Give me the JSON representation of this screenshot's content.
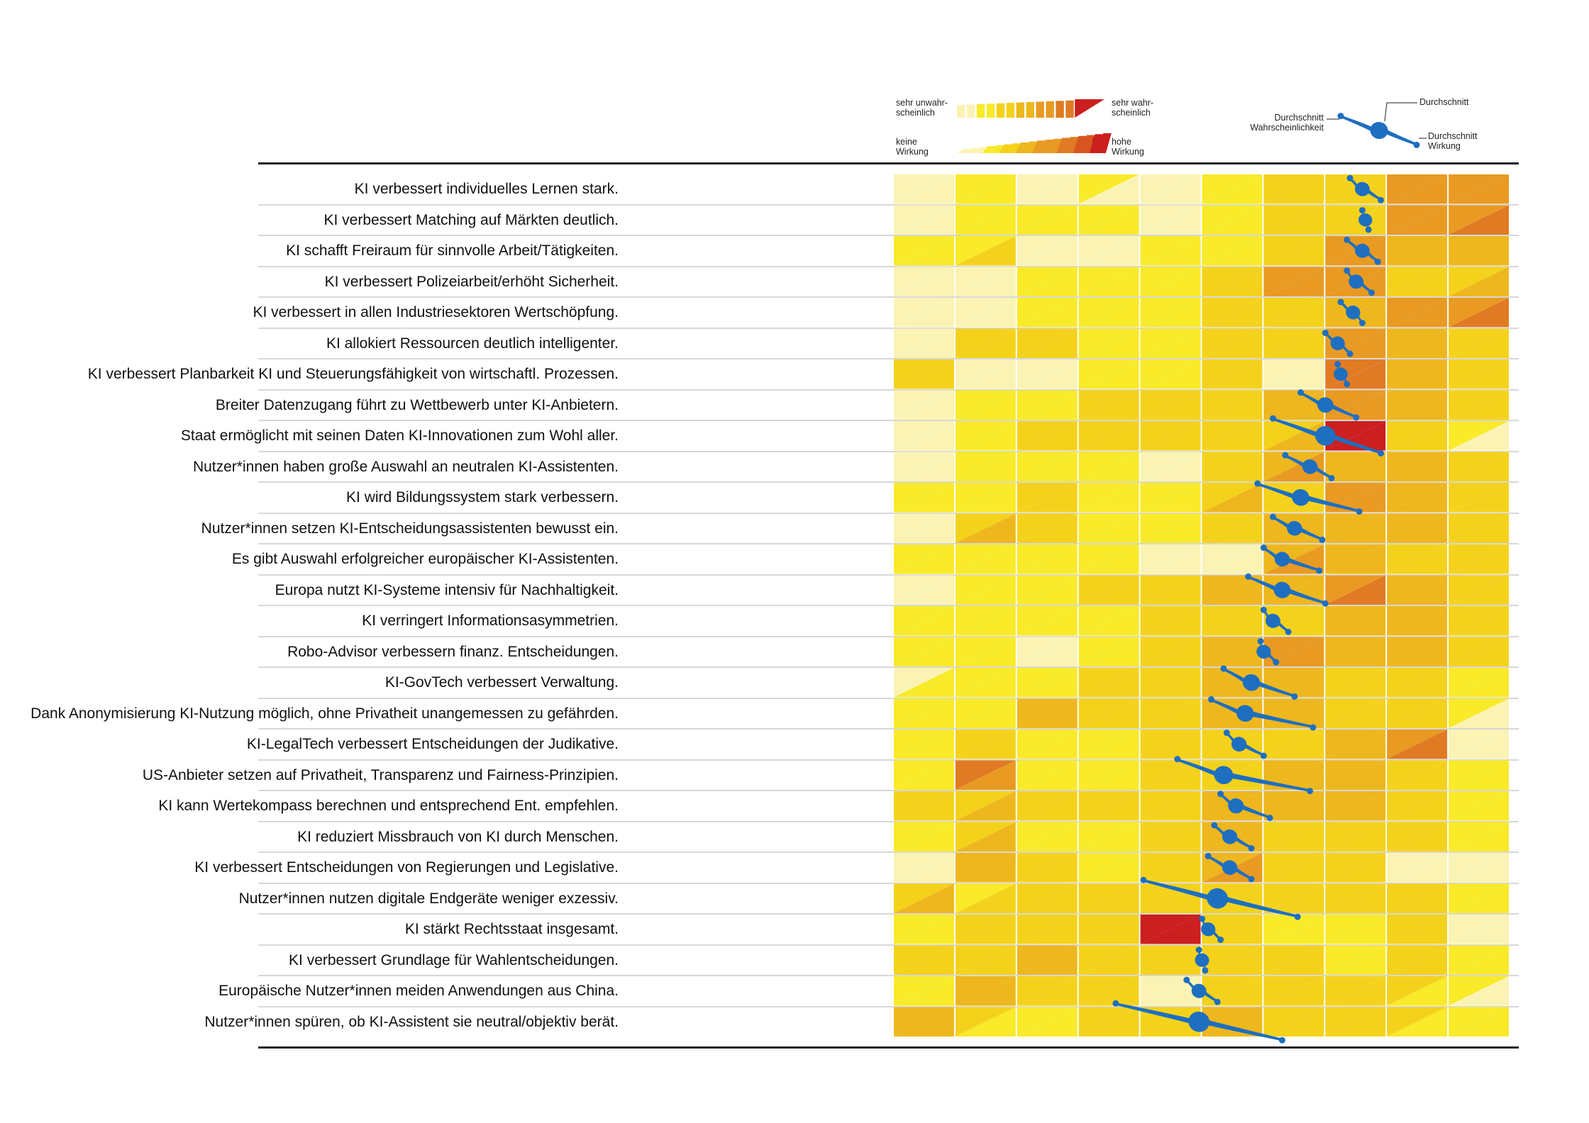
{
  "legend": {
    "prob_low": "sehr unwahr-\nscheinlich",
    "prob_high": "sehr wahr-\nscheinlich",
    "impact_low": "keine\nWirkung",
    "impact_high": "hohe\nWirkung",
    "avg_top": "Durchschnitt",
    "avg_prob": "Durchschnitt\nWahrscheinlichkeit",
    "avg_impact": "Durchschnitt\nWirkung"
  },
  "colors": {
    "scale": [
      "#fbf3b4",
      "#f9ea2a",
      "#f4d21c",
      "#eeb71e",
      "#e99a22",
      "#e07b24",
      "#d9551f",
      "#cc1f1f"
    ],
    "marker": "#1e6fc0"
  },
  "chart_data": {
    "type": "heatmap",
    "columns": 10,
    "rows": [
      {
        "label": "KI verbessert individuelles Lernen stark.",
        "p": [
          0,
          1,
          0,
          1,
          0,
          1,
          2,
          2,
          4,
          4
        ],
        "w": [
          0,
          1,
          0,
          0,
          0,
          1,
          2,
          2,
          4,
          4
        ],
        "mark": [
          7.6,
          7.4,
          7.9,
          0.25
        ]
      },
      {
        "label": "KI verbessert Matching auf Märkten deutlich.",
        "p": [
          0,
          1,
          1,
          1,
          0,
          1,
          2,
          2,
          4,
          4
        ],
        "w": [
          0,
          1,
          1,
          1,
          0,
          1,
          2,
          2,
          4,
          5
        ],
        "mark": [
          7.65,
          7.6,
          7.7,
          0.12
        ]
      },
      {
        "label": "KI schafft Freiraum für sinnvolle Arbeit/Tätigkeiten.",
        "p": [
          1,
          1,
          0,
          0,
          1,
          1,
          2,
          4,
          3,
          3
        ],
        "w": [
          1,
          2,
          0,
          0,
          1,
          1,
          2,
          4,
          3,
          3
        ],
        "mark": [
          7.6,
          7.35,
          7.85,
          0.25
        ]
      },
      {
        "label": "KI verbessert Polizeiarbeit/erhöht Sicherheit.",
        "p": [
          0,
          0,
          1,
          1,
          1,
          2,
          4,
          4,
          2,
          2
        ],
        "w": [
          0,
          0,
          1,
          1,
          1,
          2,
          4,
          4,
          2,
          3
        ],
        "mark": [
          7.5,
          7.35,
          7.75,
          0.25
        ]
      },
      {
        "label": "KI verbessert in allen Industriesektoren Wertschöpfung.",
        "p": [
          0,
          0,
          1,
          1,
          1,
          2,
          2,
          3,
          4,
          4
        ],
        "w": [
          0,
          0,
          1,
          1,
          1,
          2,
          2,
          3,
          4,
          5
        ],
        "mark": [
          7.45,
          7.25,
          7.6,
          0.2
        ]
      },
      {
        "label": "KI allokiert Ressourcen deutlich intelligenter.",
        "p": [
          0,
          2,
          2,
          1,
          1,
          2,
          2,
          4,
          3,
          2
        ],
        "w": [
          0,
          2,
          2,
          1,
          1,
          2,
          2,
          4,
          3,
          2
        ],
        "mark": [
          7.2,
          7.0,
          7.4,
          0.2
        ]
      },
      {
        "label": "KI verbessert Planbarkeit KI und Steuerungsfähigkeit von wirtschaftl. Prozessen.",
        "p": [
          2,
          0,
          0,
          1,
          1,
          2,
          0,
          5,
          3,
          2
        ],
        "w": [
          2,
          0,
          0,
          1,
          1,
          2,
          0,
          5,
          3,
          2
        ],
        "mark": [
          7.25,
          7.2,
          7.35,
          0.15
        ]
      },
      {
        "label": "Breiter Datenzugang führt zu Wettbewerb unter KI-Anbietern.",
        "p": [
          0,
          1,
          1,
          2,
          2,
          2,
          3,
          4,
          3,
          2
        ],
        "w": [
          0,
          1,
          1,
          2,
          2,
          2,
          3,
          4,
          3,
          2
        ],
        "mark": [
          7.0,
          6.6,
          7.5,
          0.4
        ]
      },
      {
        "label": "Staat ermöglicht mit seinen Daten KI-Innovationen zum Wohl aller.",
        "p": [
          0,
          1,
          2,
          2,
          2,
          2,
          2,
          7,
          2,
          1
        ],
        "w": [
          0,
          1,
          2,
          2,
          2,
          2,
          3,
          7,
          2,
          0
        ],
        "mark": [
          7.0,
          6.15,
          7.9,
          0.9
        ]
      },
      {
        "label": "Nutzer*innen haben große Auswahl an neutralen KI-Assistenten.",
        "p": [
          0,
          1,
          1,
          1,
          0,
          2,
          3,
          3,
          3,
          2
        ],
        "w": [
          0,
          1,
          1,
          1,
          0,
          2,
          4,
          3,
          3,
          2
        ],
        "mark": [
          6.75,
          6.35,
          7.1,
          0.3
        ]
      },
      {
        "label": "KI wird Bildungssystem stark verbessern.",
        "p": [
          1,
          1,
          2,
          1,
          1,
          2,
          2,
          4,
          3,
          2
        ],
        "w": [
          1,
          1,
          2,
          1,
          1,
          3,
          2,
          4,
          3,
          2
        ],
        "mark": [
          6.6,
          5.9,
          7.55,
          0.55
        ]
      },
      {
        "label": "Nutzer*innen setzen KI-Entscheidungsassistenten bewusst ein.",
        "p": [
          0,
          2,
          2,
          1,
          1,
          2,
          3,
          3,
          3,
          2
        ],
        "w": [
          0,
          3,
          2,
          1,
          1,
          2,
          3,
          3,
          3,
          2
        ],
        "mark": [
          6.5,
          6.15,
          6.95,
          0.3
        ]
      },
      {
        "label": "Es gibt Auswahl erfolgreicher europäischer KI-Assistenten.",
        "p": [
          1,
          1,
          1,
          1,
          0,
          0,
          3,
          3,
          2,
          2
        ],
        "w": [
          1,
          1,
          1,
          1,
          0,
          0,
          4,
          3,
          2,
          2
        ],
        "mark": [
          6.3,
          6.0,
          6.9,
          0.3
        ]
      },
      {
        "label": "Europa nutzt KI-Systeme intensiv für Nachhaltigkeit.",
        "p": [
          0,
          1,
          1,
          2,
          2,
          3,
          3,
          4,
          3,
          2
        ],
        "w": [
          0,
          1,
          1,
          2,
          2,
          3,
          3,
          5,
          3,
          2
        ],
        "mark": [
          6.3,
          5.75,
          7.0,
          0.5
        ]
      },
      {
        "label": "KI verringert Informationsasymmetrien.",
        "p": [
          1,
          1,
          1,
          1,
          2,
          2,
          2,
          3,
          3,
          2
        ],
        "w": [
          1,
          1,
          1,
          1,
          2,
          2,
          2,
          3,
          3,
          2
        ],
        "mark": [
          6.15,
          6.0,
          6.4,
          0.25
        ]
      },
      {
        "label": "Robo-Advisor verbessern finanz. Entscheidungen.",
        "p": [
          1,
          1,
          0,
          1,
          2,
          3,
          4,
          3,
          3,
          2
        ],
        "w": [
          1,
          1,
          0,
          1,
          2,
          3,
          4,
          3,
          3,
          2
        ],
        "mark": [
          6.0,
          5.95,
          6.2,
          0.2
        ]
      },
      {
        "label": "KI-GovTech verbessert Verwaltung.",
        "p": [
          0,
          1,
          1,
          2,
          2,
          3,
          3,
          2,
          2,
          1
        ],
        "w": [
          1,
          1,
          1,
          2,
          2,
          3,
          3,
          2,
          2,
          1
        ],
        "mark": [
          5.8,
          5.35,
          6.5,
          0.55
        ]
      },
      {
        "label": "Dank Anonymisierung KI-Nutzung möglich, ohne Privatheit unangemessen zu gefährden.",
        "p": [
          1,
          1,
          3,
          2,
          2,
          3,
          3,
          2,
          2,
          1
        ],
        "w": [
          1,
          1,
          3,
          2,
          2,
          3,
          3,
          2,
          2,
          0
        ],
        "mark": [
          5.7,
          5.15,
          6.8,
          0.55
        ]
      },
      {
        "label": "KI-LegalTech verbessert Entscheidungen der Judikative.",
        "p": [
          1,
          2,
          1,
          1,
          2,
          2,
          2,
          3,
          4,
          0
        ],
        "w": [
          1,
          2,
          1,
          1,
          2,
          2,
          2,
          3,
          5,
          0
        ],
        "mark": [
          5.6,
          5.4,
          6.0,
          0.3
        ]
      },
      {
        "label": "US-Anbieter setzen auf Privatheit, Transparenz und Fairness-Prinzipien.",
        "p": [
          1,
          5,
          1,
          1,
          2,
          2,
          3,
          3,
          2,
          1
        ],
        "w": [
          1,
          4,
          1,
          1,
          2,
          2,
          3,
          3,
          2,
          1
        ],
        "mark": [
          5.35,
          4.6,
          6.75,
          0.75
        ]
      },
      {
        "label": "KI kann Wertekompass berechnen und entsprechend Ent. empfehlen.",
        "p": [
          2,
          2,
          2,
          2,
          2,
          3,
          3,
          3,
          2,
          1
        ],
        "w": [
          2,
          3,
          2,
          2,
          2,
          3,
          3,
          3,
          2,
          1
        ],
        "mark": [
          5.55,
          5.3,
          6.1,
          0.35
        ]
      },
      {
        "label": "KI reduziert Missbrauch von KI durch Menschen.",
        "p": [
          1,
          2,
          1,
          1,
          2,
          3,
          2,
          2,
          2,
          1
        ],
        "w": [
          1,
          3,
          1,
          1,
          2,
          3,
          2,
          2,
          2,
          1
        ],
        "mark": [
          5.45,
          5.2,
          5.8,
          0.3
        ]
      },
      {
        "label": "KI verbessert Entscheidungen von Regierungen und Legislative.",
        "p": [
          0,
          3,
          2,
          1,
          2,
          3,
          2,
          2,
          0,
          0
        ],
        "w": [
          0,
          3,
          2,
          1,
          2,
          4,
          2,
          2,
          0,
          0
        ],
        "mark": [
          5.45,
          5.1,
          5.8,
          0.3
        ]
      },
      {
        "label": "Nutzer*innen nutzen digitale Endgeräte weniger exzessiv.",
        "p": [
          2,
          1,
          2,
          2,
          2,
          2,
          2,
          2,
          2,
          1
        ],
        "w": [
          3,
          2,
          2,
          2,
          2,
          2,
          2,
          2,
          2,
          1
        ],
        "mark": [
          5.25,
          4.05,
          6.55,
          1.05
        ]
      },
      {
        "label": "KI stärkt Rechtsstaat insgesamt.",
        "p": [
          1,
          2,
          2,
          2,
          7,
          2,
          1,
          1,
          2,
          0
        ],
        "w": [
          1,
          2,
          2,
          2,
          7,
          2,
          1,
          1,
          2,
          0
        ],
        "mark": [
          5.1,
          5.0,
          5.3,
          0.2
        ]
      },
      {
        "label": "KI verbessert Grundlage für Wahlentscheidungen.",
        "p": [
          2,
          2,
          3,
          2,
          2,
          2,
          2,
          1,
          2,
          1
        ],
        "w": [
          2,
          2,
          3,
          2,
          2,
          2,
          2,
          1,
          2,
          1
        ],
        "mark": [
          5.0,
          4.95,
          5.05,
          0.18
        ]
      },
      {
        "label": "Europäische Nutzer*innen meiden Anwendungen aus China.",
        "p": [
          1,
          3,
          2,
          2,
          0,
          2,
          2,
          2,
          2,
          1
        ],
        "w": [
          1,
          3,
          2,
          2,
          0,
          2,
          2,
          2,
          1,
          0
        ],
        "mark": [
          4.95,
          4.75,
          5.25,
          0.25
        ]
      },
      {
        "label": "Nutzer*innen spüren, ob KI-Assistent sie neutral/objektiv berät.",
        "p": [
          3,
          2,
          1,
          2,
          2,
          3,
          2,
          2,
          2,
          1
        ],
        "w": [
          3,
          1,
          1,
          2,
          2,
          3,
          2,
          2,
          1,
          1
        ],
        "mark": [
          4.95,
          3.6,
          6.3,
          1.05
        ]
      }
    ]
  }
}
